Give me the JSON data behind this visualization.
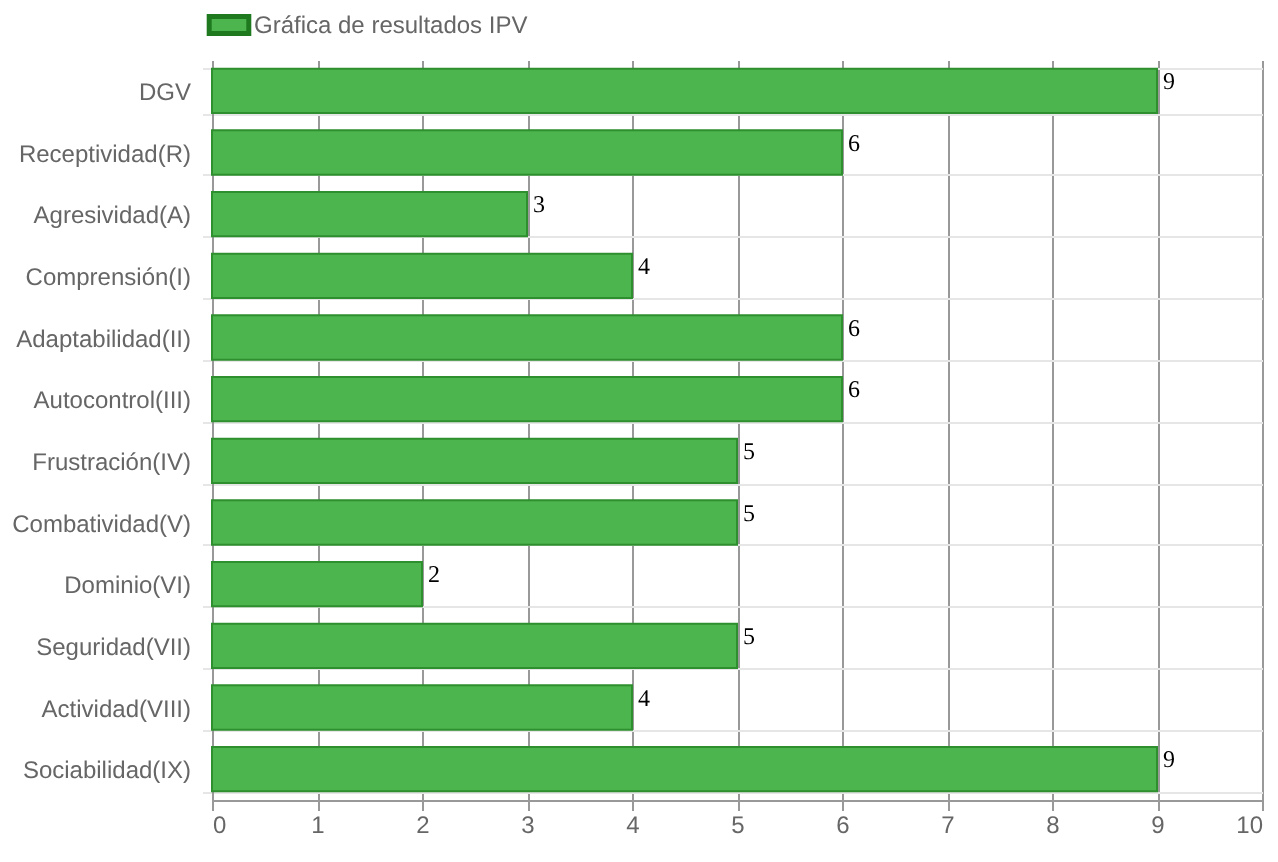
{
  "chart_data": {
    "type": "bar",
    "orientation": "horizontal",
    "categories": [
      "DGV",
      "Receptividad(R)",
      "Agresividad(A)",
      "Comprensión(I)",
      "Adaptabilidad(II)",
      "Autocontrol(III)",
      "Frustración(IV)",
      "Combatividad(V)",
      "Dominio(VI)",
      "Seguridad(VII)",
      "Actividad(VIII)",
      "Sociabilidad(IX)"
    ],
    "series": [
      {
        "name": "Gráfica de resultados IPV",
        "color": "#4db54d",
        "values": [
          9,
          6,
          3,
          4,
          6,
          6,
          5,
          5,
          2,
          5,
          4,
          9
        ]
      }
    ],
    "xlim": [
      0,
      10
    ],
    "xticks": [
      0,
      1,
      2,
      3,
      4,
      5,
      6,
      7,
      8,
      9,
      10
    ],
    "grid": true,
    "legend": "top",
    "data_labels": true
  }
}
